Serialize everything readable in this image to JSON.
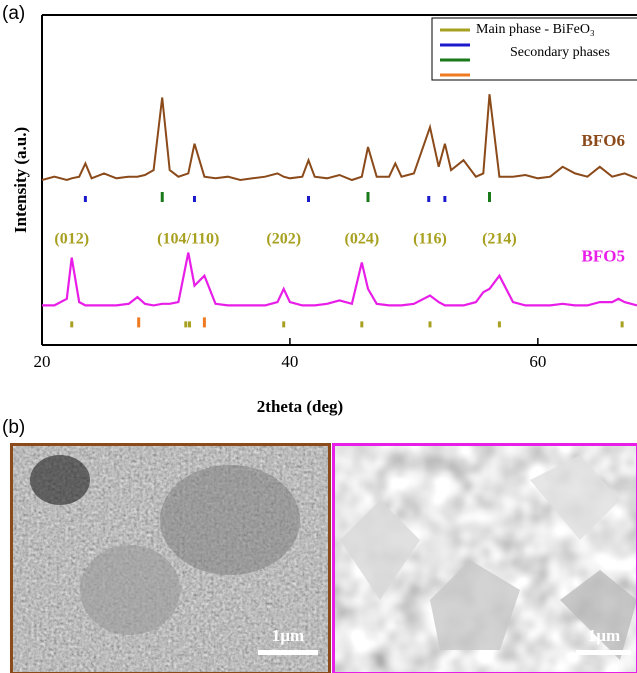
{
  "chart_data": {
    "type": "line",
    "panel_labels": [
      "(a)",
      "(b)"
    ],
    "xlabel": "2theta (deg)",
    "ylabel": "Intensity (a.u.)",
    "xlim": [
      20,
      68
    ],
    "xticks": [
      20,
      40,
      60
    ],
    "ylim": [
      0,
      100
    ],
    "x": [
      20,
      21,
      22,
      22.4,
      23,
      23.5,
      24,
      25,
      26,
      27,
      27.7,
      28.3,
      29,
      29.7,
      30.3,
      31,
      31.8,
      32.3,
      33.1,
      34,
      35,
      36,
      37,
      38,
      39,
      39.5,
      40,
      41,
      41.5,
      42,
      43,
      44,
      45,
      45.8,
      46.3,
      47,
      48,
      48.5,
      49,
      50,
      51.3,
      52,
      52.5,
      53,
      54,
      55,
      55.6,
      56.1,
      56.9,
      58,
      59,
      60,
      61,
      62,
      63,
      64,
      65,
      66,
      66.5,
      67,
      68
    ],
    "series": [
      {
        "name": "BFO6",
        "color": "#8b4a1a",
        "values": [
          50,
          51,
          50,
          50.5,
          51,
          55,
          50.5,
          52,
          50.5,
          51,
          51,
          51.5,
          53,
          75,
          53,
          51,
          52,
          61,
          51,
          50.5,
          51,
          50,
          50.5,
          51,
          52,
          51,
          50.5,
          51,
          56,
          51,
          50.5,
          51.5,
          50,
          51,
          60,
          51,
          51,
          55,
          51,
          52,
          66,
          54,
          61,
          53,
          56,
          51,
          52,
          76,
          51,
          51,
          51.5,
          50.5,
          51,
          54,
          52,
          51,
          54,
          51,
          51.5,
          52,
          50.5
        ],
        "phase_ticks": [
          {
            "color": "#1a1acc",
            "x": [
              23.5,
              32.3,
              41.5,
              51.2,
              52.5
            ]
          },
          {
            "color": "#1a7a1a",
            "x": [
              29.7,
              46.3,
              56.1
            ]
          }
        ]
      },
      {
        "name": "BFO5",
        "color": "#e81ee8",
        "values": [
          12,
          12,
          14,
          26.5,
          13,
          12,
          12,
          12,
          12,
          12.5,
          14.5,
          12.5,
          12,
          12.5,
          12.5,
          13,
          28,
          18,
          21,
          12.5,
          12,
          12,
          12,
          12,
          13,
          17,
          13,
          12,
          12,
          12,
          12.5,
          13.5,
          12.5,
          25,
          17,
          12.5,
          12,
          12,
          12,
          12.5,
          15,
          13,
          12,
          12,
          12,
          13,
          16,
          17,
          21,
          13,
          12,
          12,
          12,
          12.5,
          12,
          12,
          13,
          13,
          14,
          13,
          12
        ],
        "phase_ticks": [
          {
            "color": "#a8a020",
            "x": [
              22.4,
              31.6,
              31.9,
              39.5,
              45.8,
              51.3,
              56.9,
              66.8
            ]
          },
          {
            "color": "#f07a20",
            "x": [
              27.8,
              33.1
            ]
          }
        ]
      }
    ],
    "peak_labels": [
      {
        "text": "(012)",
        "x": 22.4
      },
      {
        "text": "(104/110)",
        "x": 31.8
      },
      {
        "text": "(202)",
        "x": 39.5
      },
      {
        "text": "(024)",
        "x": 45.8
      },
      {
        "text": "(116)",
        "x": 51.3
      },
      {
        "text": "(214)",
        "x": 56.9
      }
    ],
    "peak_label_color": "#a8a020",
    "legend": [
      {
        "name": "Main phase - BiFeO₃",
        "color": "#a8a020"
      },
      {
        "color": "#1a1acc"
      },
      {
        "name": "Secondary phases",
        "color": "#1a7a1a"
      },
      {
        "color": "#f07a20"
      }
    ],
    "images": [
      {
        "scale_bar": "1µm",
        "border": "#8b4a1a"
      },
      {
        "scale_bar": "1µm",
        "border": "#e81ee8"
      }
    ]
  }
}
